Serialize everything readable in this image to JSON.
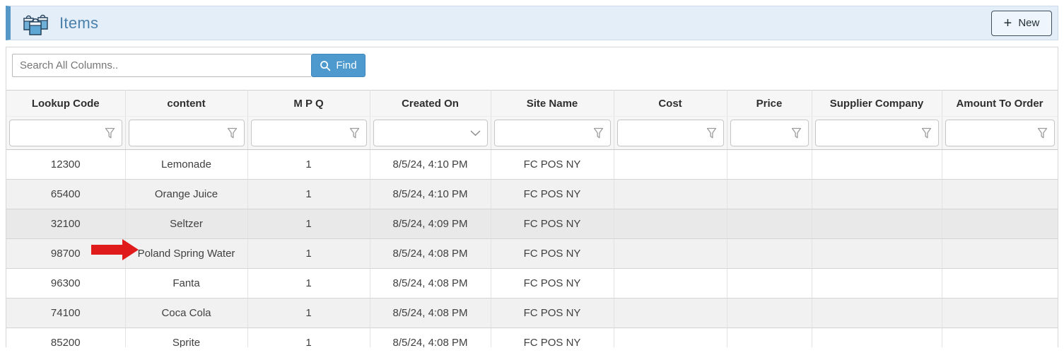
{
  "header": {
    "title": "Items",
    "app_icon": "shopping-bags-icon",
    "new_button": {
      "icon": "+",
      "label": "New"
    }
  },
  "toolbar": {
    "search_placeholder": "Search All Columns..",
    "search_value": "",
    "find_button": {
      "icon": "search-icon",
      "label": "Find"
    }
  },
  "table": {
    "columns": [
      {
        "id": "lookup-code",
        "label": "Lookup Code",
        "filter_icon": "funnel-icon"
      },
      {
        "id": "content",
        "label": "content",
        "filter_icon": "funnel-icon"
      },
      {
        "id": "mpq",
        "label": "M P Q",
        "filter_icon": "funnel-icon"
      },
      {
        "id": "created-on",
        "label": "Created On",
        "filter_icon": "chevron-down-icon"
      },
      {
        "id": "site-name",
        "label": "Site Name",
        "filter_icon": "funnel-icon"
      },
      {
        "id": "cost",
        "label": "Cost",
        "filter_icon": "funnel-icon"
      },
      {
        "id": "price",
        "label": "Price",
        "filter_icon": "funnel-icon"
      },
      {
        "id": "supplier-company",
        "label": "Supplier Company",
        "filter_icon": "funnel-icon"
      },
      {
        "id": "amount-to-order",
        "label": "Amount To Order",
        "filter_icon": "funnel-icon"
      }
    ],
    "filter_values": [
      "",
      "",
      "",
      "",
      "",
      "",
      "",
      "",
      ""
    ],
    "rows": [
      {
        "highlighted": false,
        "cells": [
          "12300",
          "Lemonade",
          "1",
          "8/5/24, 4:10 PM",
          "FC POS NY",
          "",
          "",
          "",
          ""
        ]
      },
      {
        "highlighted": false,
        "cells": [
          "65400",
          "Orange Juice",
          "1",
          "8/5/24, 4:10 PM",
          "FC POS NY",
          "",
          "",
          "",
          ""
        ]
      },
      {
        "highlighted": true,
        "cells": [
          "32100",
          "Seltzer",
          "1",
          "8/5/24, 4:09 PM",
          "FC POS NY",
          "",
          "",
          "",
          ""
        ]
      },
      {
        "highlighted": false,
        "cells": [
          "98700",
          "Poland Spring Water",
          "1",
          "8/5/24, 4:08 PM",
          "FC POS NY",
          "",
          "",
          "",
          ""
        ]
      },
      {
        "highlighted": false,
        "cells": [
          "96300",
          "Fanta",
          "1",
          "8/5/24, 4:08 PM",
          "FC POS NY",
          "",
          "",
          "",
          ""
        ]
      },
      {
        "highlighted": false,
        "cells": [
          "74100",
          "Coca Cola",
          "1",
          "8/5/24, 4:08 PM",
          "FC POS NY",
          "",
          "",
          "",
          ""
        ]
      },
      {
        "highlighted": false,
        "cells": [
          "85200",
          "Sprite",
          "1",
          "8/5/24, 4:08 PM",
          "FC POS NY",
          "",
          "",
          "",
          ""
        ]
      }
    ]
  },
  "annotation": {
    "type": "red-arrow",
    "color": "#e01b1b",
    "points_at": "Poland Spring Water"
  },
  "colors": {
    "accent_blue": "#5598c8",
    "header_bg": "#e4eef8",
    "title_blue": "#4b80ab",
    "find_button_bg": "#4e9ace",
    "row_stripe": "#f1f1f1",
    "row_highlight": "#e9e9e9"
  }
}
